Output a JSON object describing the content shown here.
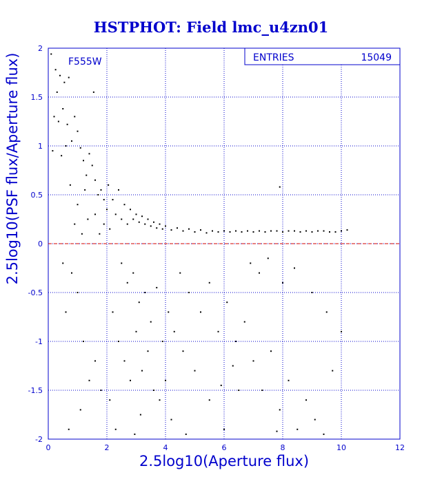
{
  "chart_data": {
    "type": "scatter",
    "title": "HSTPHOT: Field lmc_u4zn01",
    "xlabel": "2.5log10(Aperture flux)",
    "ylabel": "2.5log10(PSF flux/Aperture flux)",
    "xlim": [
      0,
      12
    ],
    "ylim": [
      -2,
      2
    ],
    "x_ticks": [
      "0",
      "2",
      "4",
      "6",
      "8",
      "10",
      "12"
    ],
    "y_ticks": [
      "-2",
      "-1.5",
      "-1",
      "-0.5",
      "0",
      "0.5",
      "1",
      "1.5",
      "2"
    ],
    "grid": true,
    "filter_label": "F555W",
    "stats_box": {
      "label": "ENTRIES",
      "value": "15049"
    },
    "reference_line": {
      "y": 0,
      "color": "#d00000",
      "style": "dashed"
    },
    "colors": {
      "text": "#0000cc",
      "axes": "#0000cc",
      "points": "#000000"
    },
    "series": [
      {
        "points": [
          [
            0.1,
            1.94
          ],
          [
            0.25,
            1.78
          ],
          [
            0.4,
            1.72
          ],
          [
            0.3,
            1.55
          ],
          [
            0.55,
            1.65
          ],
          [
            0.7,
            1.7
          ],
          [
            0.2,
            1.3
          ],
          [
            0.35,
            1.25
          ],
          [
            0.5,
            1.38
          ],
          [
            0.65,
            1.22
          ],
          [
            0.8,
            1.05
          ],
          [
            0.9,
            1.3
          ],
          [
            1.0,
            1.15
          ],
          [
            0.15,
            0.95
          ],
          [
            0.45,
            0.9
          ],
          [
            0.6,
            1.0
          ],
          [
            1.1,
            0.98
          ],
          [
            1.2,
            0.85
          ],
          [
            1.3,
            0.7
          ],
          [
            1.4,
            0.92
          ],
          [
            1.5,
            0.8
          ],
          [
            1.6,
            0.65
          ],
          [
            1.7,
            0.5
          ],
          [
            1.8,
            0.55
          ],
          [
            1.9,
            0.45
          ],
          [
            1.55,
            1.55
          ],
          [
            1.25,
            0.55
          ],
          [
            1.0,
            0.4
          ],
          [
            0.75,
            0.6
          ],
          [
            0.9,
            0.2
          ],
          [
            1.15,
            0.1
          ],
          [
            1.35,
            0.25
          ],
          [
            1.6,
            0.3
          ],
          [
            1.75,
            0.1
          ],
          [
            1.9,
            0.2
          ],
          [
            2.0,
            0.35
          ],
          [
            2.05,
            0.6
          ],
          [
            2.1,
            0.15
          ],
          [
            2.2,
            0.45
          ],
          [
            2.3,
            0.3
          ],
          [
            2.4,
            0.55
          ],
          [
            2.5,
            0.25
          ],
          [
            2.6,
            0.4
          ],
          [
            2.7,
            0.2
          ],
          [
            2.8,
            0.35
          ],
          [
            2.9,
            0.25
          ],
          [
            3.0,
            0.3
          ],
          [
            3.1,
            0.22
          ],
          [
            3.2,
            0.28
          ],
          [
            3.3,
            0.2
          ],
          [
            3.4,
            0.25
          ],
          [
            3.5,
            0.18
          ],
          [
            3.6,
            0.22
          ],
          [
            3.7,
            0.16
          ],
          [
            3.8,
            0.2
          ],
          [
            3.9,
            0.15
          ],
          [
            4.0,
            0.18
          ],
          [
            4.2,
            0.14
          ],
          [
            4.4,
            0.16
          ],
          [
            4.6,
            0.13
          ],
          [
            4.8,
            0.15
          ],
          [
            5.0,
            0.12
          ],
          [
            5.2,
            0.14
          ],
          [
            5.4,
            0.11
          ],
          [
            5.6,
            0.13
          ],
          [
            5.8,
            0.12
          ],
          [
            6.0,
            0.13
          ],
          [
            6.2,
            0.12
          ],
          [
            6.4,
            0.13
          ],
          [
            6.6,
            0.12
          ],
          [
            6.8,
            0.13
          ],
          [
            7.0,
            0.12
          ],
          [
            7.2,
            0.13
          ],
          [
            7.4,
            0.12
          ],
          [
            7.6,
            0.13
          ],
          [
            7.8,
            0.13
          ],
          [
            8.0,
            0.12
          ],
          [
            8.2,
            0.13
          ],
          [
            8.4,
            0.13
          ],
          [
            8.6,
            0.12
          ],
          [
            8.8,
            0.13
          ],
          [
            9.0,
            0.12
          ],
          [
            9.2,
            0.13
          ],
          [
            9.4,
            0.13
          ],
          [
            9.6,
            0.12
          ],
          [
            9.8,
            0.12
          ],
          [
            10.0,
            0.13
          ],
          [
            10.2,
            0.14
          ],
          [
            7.9,
            0.58
          ],
          [
            2.5,
            -0.2
          ],
          [
            2.7,
            -0.4
          ],
          [
            2.9,
            -0.3
          ],
          [
            3.1,
            -0.6
          ],
          [
            3.3,
            -0.5
          ],
          [
            3.5,
            -0.8
          ],
          [
            3.7,
            -0.45
          ],
          [
            2.2,
            -0.7
          ],
          [
            2.4,
            -1.0
          ],
          [
            2.6,
            -1.2
          ],
          [
            2.8,
            -1.4
          ],
          [
            3.0,
            -0.9
          ],
          [
            3.2,
            -1.3
          ],
          [
            3.4,
            -1.1
          ],
          [
            3.6,
            -1.5
          ],
          [
            3.8,
            -1.6
          ],
          [
            4.0,
            -1.4
          ],
          [
            4.2,
            -1.8
          ],
          [
            2.1,
            -1.6
          ],
          [
            2.3,
            -1.9
          ],
          [
            1.8,
            -1.5
          ],
          [
            1.6,
            -1.2
          ],
          [
            1.4,
            -1.4
          ],
          [
            1.2,
            -1.0
          ],
          [
            1.0,
            -0.5
          ],
          [
            0.8,
            -0.3
          ],
          [
            0.6,
            -0.7
          ],
          [
            0.5,
            -0.2
          ],
          [
            0.7,
            -1.9
          ],
          [
            1.1,
            -1.7
          ],
          [
            4.5,
            -0.3
          ],
          [
            4.8,
            -0.5
          ],
          [
            5.2,
            -0.7
          ],
          [
            5.5,
            -0.4
          ],
          [
            5.8,
            -0.9
          ],
          [
            6.1,
            -0.6
          ],
          [
            6.4,
            -1.0
          ],
          [
            6.7,
            -0.8
          ],
          [
            7.0,
            -1.2
          ],
          [
            7.3,
            -1.5
          ],
          [
            7.6,
            -1.1
          ],
          [
            7.9,
            -1.7
          ],
          [
            8.2,
            -1.4
          ],
          [
            8.5,
            -1.9
          ],
          [
            8.8,
            -1.6
          ],
          [
            9.1,
            -1.8
          ],
          [
            9.4,
            -1.95
          ],
          [
            5.0,
            -1.3
          ],
          [
            5.5,
            -1.6
          ],
          [
            6.0,
            -1.9
          ],
          [
            6.5,
            -1.5
          ],
          [
            4.6,
            -1.1
          ],
          [
            4.3,
            -0.9
          ],
          [
            3.9,
            -1.0
          ],
          [
            4.1,
            -0.7
          ],
          [
            6.9,
            -0.2
          ],
          [
            7.2,
            -0.3
          ],
          [
            7.5,
            -0.15
          ],
          [
            8.0,
            -0.4
          ],
          [
            8.4,
            -0.25
          ],
          [
            9.0,
            -0.5
          ],
          [
            9.5,
            -0.7
          ],
          [
            10.0,
            -0.9
          ],
          [
            9.7,
            -1.3
          ],
          [
            6.3,
            -1.25
          ],
          [
            5.9,
            -1.45
          ],
          [
            3.15,
            -1.75
          ],
          [
            2.95,
            -1.95
          ],
          [
            4.7,
            -1.95
          ],
          [
            7.8,
            -1.92
          ]
        ]
      }
    ]
  }
}
